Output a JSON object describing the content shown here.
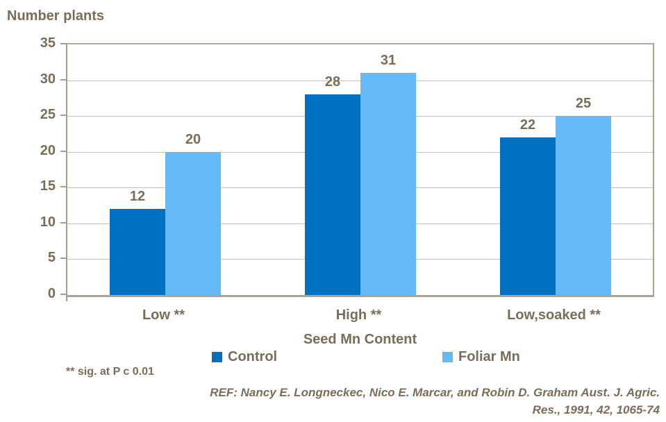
{
  "chart_data": {
    "type": "bar",
    "title": "Number plants",
    "xlabel": "Seed Mn Content",
    "ylabel": "Number plants",
    "categories": [
      "Low **",
      "High **",
      "Low,soaked **"
    ],
    "series": [
      {
        "name": "Control",
        "color": "#0070C0",
        "values": [
          12,
          28,
          22
        ]
      },
      {
        "name": "Foliar Mn",
        "color": "#66B9F7",
        "values": [
          20,
          31,
          25
        ]
      }
    ],
    "ylim": [
      0,
      35
    ],
    "yticks": [
      0,
      5,
      10,
      15,
      20,
      25,
      30,
      35
    ],
    "grid": true,
    "bar_labels": true,
    "legend_position": "bottom"
  },
  "footnote": "** sig. at P c 0.01",
  "reference": {
    "line1": "REF: Nancy E. Longneckec, Nico E. Marcar, and Robin D. Graham Aust. J. Agric.",
    "line2": "Res., 1991, 42, 1065-74"
  },
  "colors": {
    "text": "#7B6C58",
    "gridline": "#C8BFB2",
    "axis": "#A79D8F",
    "control_bar": "#0070C0",
    "foliar_bar": "#66B9F7",
    "background": "#FFFFFF"
  },
  "icons": {
    "legend_control_swatch": "square-swatch-icon",
    "legend_foliar_swatch": "square-swatch-icon"
  }
}
